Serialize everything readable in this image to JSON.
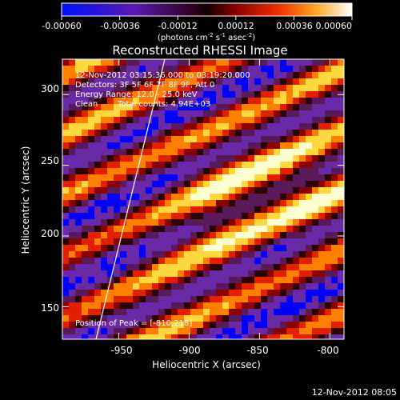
{
  "colorbar": {
    "ticks": [
      "-0.00060",
      "-0.00036",
      "-0.00012",
      "0.00012",
      "0.00036",
      "0.00060"
    ],
    "range": [
      -0.0006,
      0.0006
    ],
    "units_main": "(photons cm",
    "units_sup1": "-2",
    "units_mid1": " s",
    "units_sup2": "-1",
    "units_mid2": " asec",
    "units_sup3": "-2",
    "units_end": ")"
  },
  "chart_data": {
    "type": "heatmap",
    "title": "Reconstructed RHESSI Image",
    "xlabel": "Heliocentric X (arcsec)",
    "ylabel": "Heliocentric Y (arcsec)",
    "xlim": [
      -990,
      -790
    ],
    "ylim": [
      127,
      325
    ],
    "x_ticks": [
      -950,
      -900,
      -850,
      -800
    ],
    "y_ticks": [
      150,
      200,
      250,
      300
    ],
    "peak": [
      -810,
      218
    ],
    "colors": [
      "#0000ff",
      "#6a2aa8",
      "#5a1a5a",
      "#2a0000",
      "#8a0000",
      "#e02000",
      "#ff8000",
      "#ffd840",
      "#ffffd0"
    ]
  },
  "annotations": {
    "time_range": "12-Nov-2012 03:15:36.000 to 03:19:20.000",
    "detectors": "Detectors: 3F 5F 6F 7F 8F 9F, Att 0",
    "energy": "Energy Range: 12.0 - 25.0 keV",
    "method": "Clean",
    "counts": "Total counts: 4.94E+03",
    "peak_text": "Position of Peak = [-810,218]"
  },
  "timestamp": "12-Nov-2012 08:05"
}
